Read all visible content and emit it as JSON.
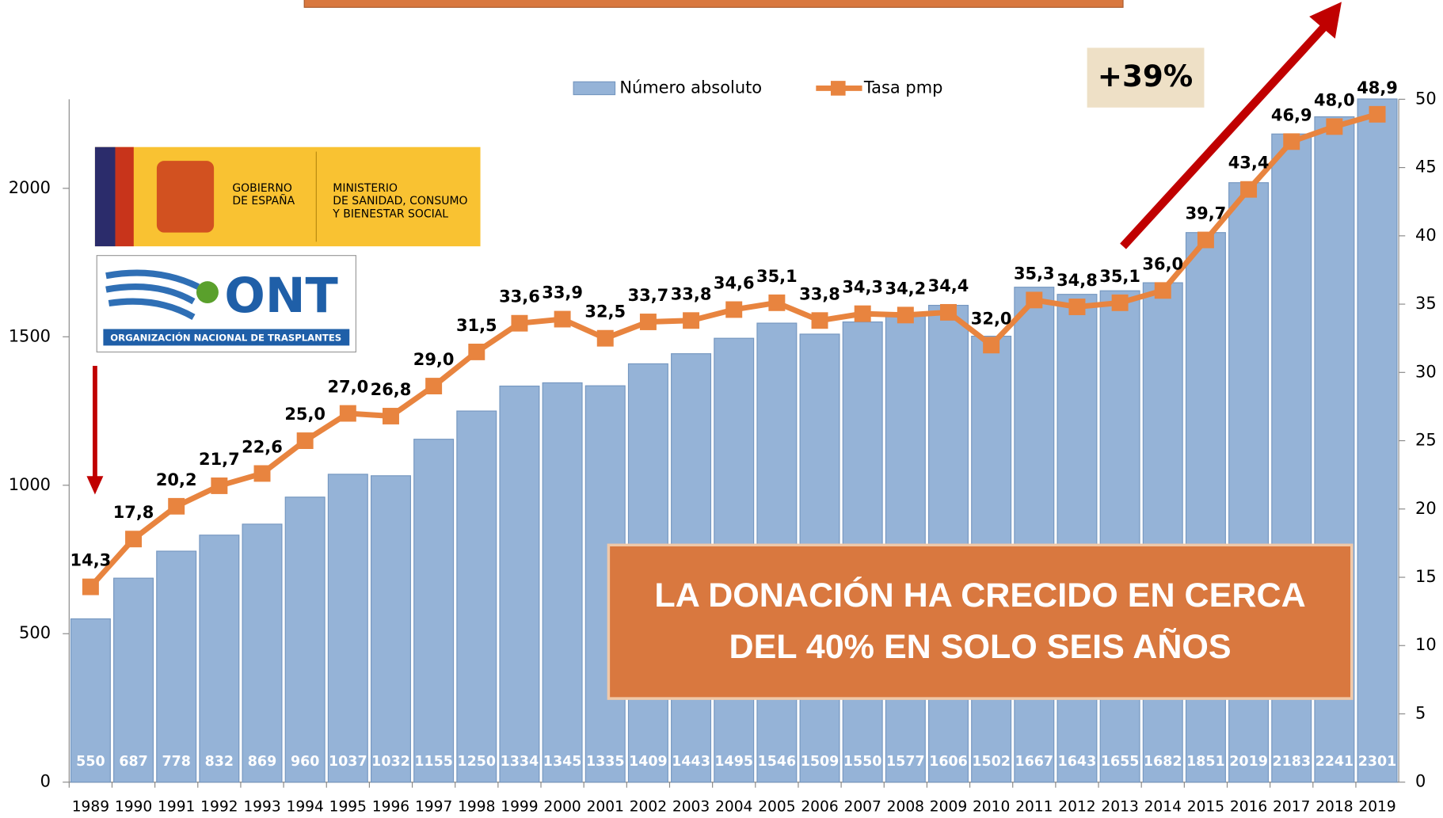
{
  "chart_data": {
    "type": "bar",
    "categories": [
      "1989",
      "1990",
      "1991",
      "1992",
      "1993",
      "1994",
      "1995",
      "1996",
      "1997",
      "1998",
      "1999",
      "2000",
      "2001",
      "2002",
      "2003",
      "2004",
      "2005",
      "2006",
      "2007",
      "2008",
      "2009",
      "2010",
      "2011",
      "2012",
      "2013",
      "2014",
      "2015",
      "2016",
      "2017",
      "2018",
      "2019"
    ],
    "series": [
      {
        "name": "Número absoluto",
        "color": "#95b3d7",
        "values": [
          550,
          687,
          778,
          832,
          869,
          960,
          1037,
          1032,
          1155,
          1250,
          1334,
          1345,
          1335,
          1409,
          1443,
          1495,
          1546,
          1509,
          1550,
          1577,
          1606,
          1502,
          1667,
          1643,
          1655,
          1682,
          1851,
          2019,
          2183,
          2241,
          2301
        ]
      },
      {
        "name": "Tasa pmp",
        "color": "#e8843f",
        "type": "line",
        "axis": "y2",
        "values": [
          14.3,
          17.8,
          20.2,
          21.7,
          22.6,
          25.0,
          27.0,
          26.8,
          29.0,
          31.5,
          33.6,
          33.9,
          32.5,
          33.7,
          33.8,
          34.6,
          35.1,
          33.8,
          34.3,
          34.2,
          34.4,
          32.0,
          35.3,
          34.8,
          35.1,
          36.0,
          39.7,
          43.4,
          46.9,
          48.0,
          48.9
        ],
        "value_labels": [
          "14,3",
          "17,8",
          "20,2",
          "21,7",
          "22,6",
          "25,0",
          "27,0",
          "26,8",
          "29,0",
          "31,5",
          "33,6",
          "33,9",
          "32,5",
          "33,7",
          "33,8",
          "34,6",
          "35,1",
          "33,8",
          "34,3",
          "34,2",
          "34,4",
          "32,0",
          "35,3",
          "34,8",
          "35,1",
          "36,0",
          "39,7",
          "43,4",
          "46,9",
          "48,0",
          "48,9"
        ]
      }
    ],
    "ylim": [
      0,
      2300
    ],
    "yticks": [
      0,
      500,
      1000,
      1500,
      2000
    ],
    "y2lim": [
      0,
      50
    ],
    "y2ticks": [
      0,
      5,
      10,
      15,
      20,
      25,
      30,
      35,
      40,
      45,
      50
    ],
    "legend": "top",
    "annotations": {
      "growth": "+39%",
      "message": [
        "LA DONACIÓN HA CRECIDO EN CERCA",
        "DEL 40% EN SOLO SEIS AÑOS"
      ]
    },
    "logos": {
      "gobierno": [
        "GOBIERNO",
        "DE ESPAÑA"
      ],
      "ministerio": [
        "MINISTERIO",
        "DE SANIDAD, CONSUMO",
        "Y BIENESTAR SOCIAL"
      ],
      "ont": "ONT",
      "ont_name": "ORGANIZACIÓN NACIONAL DE TRASPLANTES"
    }
  }
}
